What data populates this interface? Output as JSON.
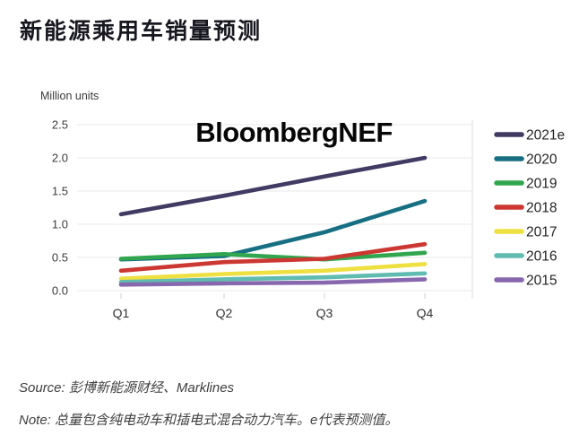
{
  "header": {
    "title": "新能源乘用车销量预测"
  },
  "chart": {
    "unit_label": "Million units",
    "watermark": "BloombergNEF"
  },
  "footer": {
    "source": "Source: 彭博新能源财经、Marklines",
    "note": "Note: 总量包含纯电动车和插电式混合动力汽车。e代表预测值。"
  },
  "chart_data": {
    "type": "line",
    "title": "新能源乘用车销量预测",
    "ylabel": "Million units",
    "xlabel": "",
    "categories": [
      "Q1",
      "Q2",
      "Q3",
      "Q4"
    ],
    "y_ticks": [
      0,
      0.5,
      1,
      1.5,
      2,
      2.5
    ],
    "ylim": [
      0,
      2.5
    ],
    "grid": true,
    "legend_position": "right",
    "series": [
      {
        "name": "2021e",
        "color": "#413a63",
        "values": [
          1.15,
          1.43,
          1.72,
          2.0
        ]
      },
      {
        "name": "2020",
        "color": "#166f82",
        "values": [
          0.47,
          0.52,
          0.88,
          1.35
        ]
      },
      {
        "name": "2019",
        "color": "#31a64e",
        "values": [
          0.48,
          0.55,
          0.47,
          0.57
        ]
      },
      {
        "name": "2018",
        "color": "#cc3732",
        "values": [
          0.3,
          0.43,
          0.48,
          0.7
        ]
      },
      {
        "name": "2017",
        "color": "#eee040",
        "values": [
          0.18,
          0.25,
          0.3,
          0.4
        ]
      },
      {
        "name": "2016",
        "color": "#60bbb0",
        "values": [
          0.13,
          0.17,
          0.2,
          0.26
        ]
      },
      {
        "name": "2015",
        "color": "#8767ae",
        "values": [
          0.09,
          0.11,
          0.12,
          0.17
        ]
      }
    ]
  }
}
